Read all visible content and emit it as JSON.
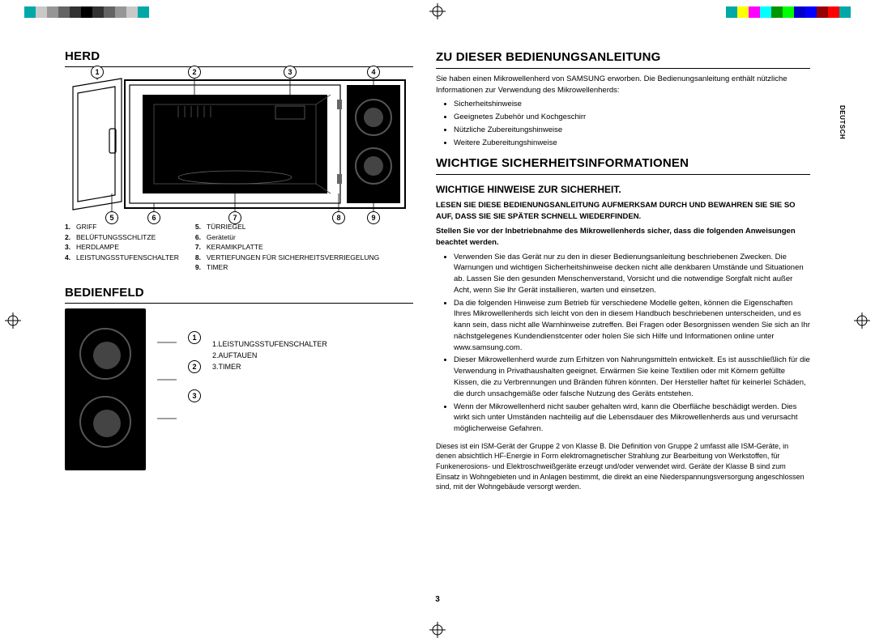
{
  "colorbar": {
    "left_swatches": [
      "#00a8a8",
      "#c8c8c8",
      "#969696",
      "#646464",
      "#323232",
      "#000000",
      "#323232",
      "#646464",
      "#969696",
      "#c8c8c8",
      "#00a8a8"
    ],
    "right_swatches": [
      "#00a8a8",
      "#ffff00",
      "#ff00ff",
      "#00ffff",
      "#009600",
      "#00ff00",
      "#0000c8",
      "#0000ff",
      "#960000",
      "#ff0000",
      "#00a8a8"
    ]
  },
  "lang_tab": "DEUTSCH",
  "page_number": "3",
  "left": {
    "herd_title": "HERD",
    "herd_callouts_top": [
      "1",
      "2",
      "3",
      "4"
    ],
    "herd_callouts_bottom": [
      "5",
      "6",
      "7",
      "8",
      "9"
    ],
    "herd_legend_col1": [
      {
        "n": "1.",
        "t": "GRIFF"
      },
      {
        "n": "2.",
        "t": "BELÜFTUNGSSCHLITZE"
      },
      {
        "n": "3.",
        "t": "HERDLAMPE"
      },
      {
        "n": "4.",
        "t": "LEISTUNGSSTUFENSCHALTER"
      }
    ],
    "herd_legend_col2": [
      {
        "n": "5.",
        "t": "TÜRRIEGEL"
      },
      {
        "n": "6.",
        "t": "Gerätetür"
      },
      {
        "n": "7.",
        "t": "KERAMIKPLATTE"
      },
      {
        "n": "8.",
        "t": "VERTIEFUNGEN FÜR SICHERHEITSVERRIEGELUNG"
      },
      {
        "n": "9.",
        "t": "TIMER"
      }
    ],
    "bedienfeld_title": "BEDIENFELD",
    "panel_callouts": [
      "1",
      "2",
      "3"
    ],
    "panel_legend": [
      {
        "n": "1.",
        "t": "LEISTUNGSSTUFENSCHALTER"
      },
      {
        "n": "2.",
        "t": "AUFTAUEN"
      },
      {
        "n": "3.",
        "t": "TIMER"
      }
    ]
  },
  "right": {
    "guide_title": "ZU DIESER BEDIENUNGSANLEITUNG",
    "intro": "Sie haben einen Mikrowellenherd von SAMSUNG erworben. Die Bedienungsanleitung enthält nützliche Informationen zur Verwendung des Mikrowellenherds:",
    "intro_bullets": [
      "Sicherheitshinweise",
      "Geeignetes Zubehör und Kochgeschirr",
      "Nützliche Zubereitungshinweise",
      "Weitere Zubereitungshinweise"
    ],
    "safety_title": "WICHTIGE SICHERHEITSINFORMATIONEN",
    "safety_sub": "WICHTIGE HINWEISE ZUR SICHERHEIT.",
    "safety_bold1": "LESEN SIE DIESE BEDIENUNGSANLEITUNG AUFMERKSAM DURCH UND BEWAHREN SIE SIE SO AUF, DASS SIE SIE SPÄTER SCHNELL WIEDERFINDEN.",
    "safety_bold2": "Stellen Sie vor der Inbetriebnahme des Mikrowellenherds sicher, dass die folgenden Anweisungen beachtet werden.",
    "safety_bullets": [
      "Verwenden Sie das Gerät nur zu den in dieser Bedienungsanleitung beschriebenen Zwecken. Die Warnungen und wichtigen Sicherheitshinweise decken nicht alle denkbaren Umstände und Situationen ab. Lassen Sie den gesunden Menschenverstand, Vorsicht und die notwendige Sorgfalt nicht außer Acht, wenn Sie Ihr Gerät installieren, warten und einsetzen.",
      "Da die folgenden Hinweise zum Betrieb für verschiedene Modelle gelten, können die Eigenschaften Ihres Mikrowellenherds sich leicht von den in diesem Handbuch beschriebenen unterscheiden, und es kann sein, dass nicht alle Warnhinweise zutreffen. Bei Fragen oder Besorgnissen wenden Sie sich an Ihr nächstgelegenes Kundendienstcenter oder holen Sie sich Hilfe und Informationen online unter www.samsung.com.",
      "Dieser Mikrowellenherd wurde zum Erhitzen von Nahrungsmitteln entwickelt. Es ist ausschließlich für die Verwendung in Privathaushalten geeignet. Erwärmen Sie keine Textilien oder mit Körnern gefüllte Kissen, die zu Verbrennungen und Bränden führen könnten. Der Hersteller haftet für keinerlei Schäden, die durch unsachgemäße oder falsche Nutzung des Geräts entstehen.",
      "Wenn der Mikrowellenherd nicht sauber gehalten wird, kann die Oberfläche beschädigt werden. Dies wirkt sich unter Umständen nachteilig auf die Lebensdauer des Mikrowellenherds aus und verursacht möglicherweise Gefahren."
    ],
    "footnote": "Dieses ist ein ISM-Gerät der Gruppe 2 von Klasse B. Die Definition von Gruppe 2 umfasst alle ISM-Geräte, in denen absichtlich HF-Energie in Form elektromagnetischer Strahlung zur Bearbeitung von Werkstoffen, für Funkenerosions- und Elektroschweißgeräte erzeugt und/oder verwendet wird. Geräte der Klasse B sind zum Einsatz in Wohngebieten und in Anlagen bestimmt, die direkt an eine Niederspannungsversorgung angeschlossen sind, mit der Wohngebäude versorgt werden."
  }
}
